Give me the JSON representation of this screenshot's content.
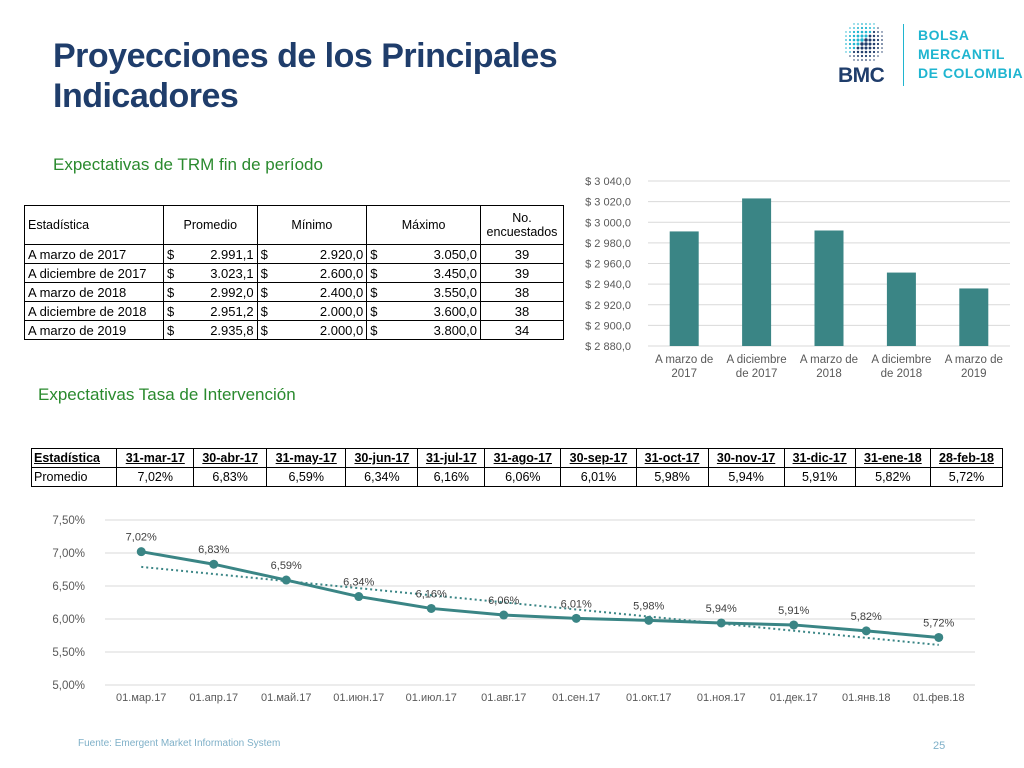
{
  "title": {
    "line1": "Proyecciones de los Principales",
    "line2": "Indicadores"
  },
  "logo": {
    "abbr": "BMC",
    "line1": "BOLSA",
    "line2": "MERCANTIL",
    "line3": "DE COLOMBIA",
    "accent": "#1fb5d0",
    "navy": "#1f3d6b"
  },
  "trm": {
    "heading": "Expectativas de TRM fin de período",
    "headers": [
      "Estadística",
      "Promedio",
      "Mínimo",
      "Máximo",
      "No. encuestados"
    ],
    "currency_symbol": "$",
    "rows": [
      {
        "label": "A marzo de 2017",
        "promedio": "2.991,1",
        "minimo": "2.920,0",
        "maximo": "3.050,0",
        "n": "39"
      },
      {
        "label": "A diciembre de 2017",
        "promedio": "3.023,1",
        "minimo": "2.600,0",
        "maximo": "3.450,0",
        "n": "39"
      },
      {
        "label": "A marzo de 2018",
        "promedio": "2.992,0",
        "minimo": "2.400,0",
        "maximo": "3.550,0",
        "n": "38"
      },
      {
        "label": "A diciembre de 2018",
        "promedio": "2.951,2",
        "minimo": "2.000,0",
        "maximo": "3.600,0",
        "n": "38"
      },
      {
        "label": "A marzo de 2019",
        "promedio": "2.935,8",
        "minimo": "2.000,0",
        "maximo": "3.800,0",
        "n": "34"
      }
    ]
  },
  "tasa": {
    "heading": "Expectativas Tasa de Intervención",
    "header_label": "Estadística",
    "row_label": "Promedio",
    "dates": [
      "31-mar-17",
      "30-abr-17",
      "31-may-17",
      "30-jun-17",
      "31-jul-17",
      "31-ago-17",
      "30-sep-17",
      "31-oct-17",
      "30-nov-17",
      "31-dic-17",
      "31-ene-18",
      "28-feb-18"
    ],
    "values": [
      "7,02%",
      "6,83%",
      "6,59%",
      "6,34%",
      "6,16%",
      "6,06%",
      "6,01%",
      "5,98%",
      "5,94%",
      "5,91%",
      "5,82%",
      "5,72%"
    ]
  },
  "chart_data": [
    {
      "type": "bar",
      "categories": [
        [
          "A marzo de",
          "2017"
        ],
        [
          "A diciembre",
          "de 2017"
        ],
        [
          "A marzo de",
          "2018"
        ],
        [
          "A diciembre",
          "de 2018"
        ],
        [
          "A marzo de",
          "2019"
        ]
      ],
      "values": [
        2991.1,
        3023.1,
        2992.0,
        2951.2,
        2935.8
      ],
      "ylim": [
        2880,
        3040
      ],
      "yticks": [
        2880,
        2900,
        2920,
        2940,
        2960,
        2980,
        3000,
        3020,
        3040
      ],
      "ytick_labels": [
        "$ 2 880,0",
        "$ 2 900,0",
        "$ 2 920,0",
        "$ 2 940,0",
        "$ 2 960,0",
        "$ 2 980,0",
        "$ 3 000,0",
        "$ 3 020,0",
        "$ 3 040,0"
      ],
      "grid": true,
      "color": "#3a8585"
    },
    {
      "type": "line",
      "x": [
        "01.мар.17",
        "01.апр.17",
        "01.май.17",
        "01.июн.17",
        "01.июл.17",
        "01.авг.17",
        "01.сен.17",
        "01.окт.17",
        "01.ноя.17",
        "01.дек.17",
        "01.янв.18",
        "01.фев.18"
      ],
      "values": [
        7.02,
        6.83,
        6.59,
        6.34,
        6.16,
        6.06,
        6.01,
        5.98,
        5.94,
        5.91,
        5.82,
        5.72
      ],
      "data_labels": [
        "7,02%",
        "6,83%",
        "6,59%",
        "6,34%",
        "6,16%",
        "6,06%",
        "6,01%",
        "5,98%",
        "5,94%",
        "5,91%",
        "5,82%",
        "5,72%"
      ],
      "ylim": [
        5.0,
        7.5
      ],
      "yticks": [
        5.0,
        5.5,
        6.0,
        6.5,
        7.0,
        7.5
      ],
      "ytick_labels": [
        "5,00%",
        "5,50%",
        "6,00%",
        "6,50%",
        "7,00%",
        "7,50%"
      ],
      "trendline": {
        "type": "linear",
        "style": "dotted"
      },
      "grid": true,
      "color": "#3a8585"
    }
  ],
  "footer": {
    "source": "Fuente: Emergent Market Information System",
    "page": "25"
  }
}
